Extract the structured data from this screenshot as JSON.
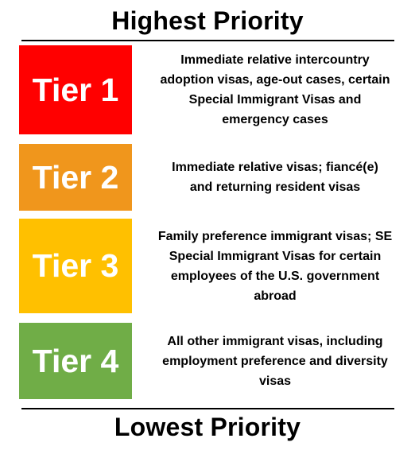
{
  "header": {
    "title": "Highest Priority"
  },
  "footer": {
    "title": "Lowest Priority"
  },
  "tiers": [
    {
      "label": "Tier 1",
      "color": "#ff0000",
      "description": "Immediate relative intercountry adoption visas, age-out cases, certain Special Immigrant Visas and emergency cases"
    },
    {
      "label": "Tier 2",
      "color": "#f0961c",
      "description": "Immediate relative visas; fiancé(e) and returning resident visas"
    },
    {
      "label": "Tier 3",
      "color": "#ffc000",
      "description": "Family preference immigrant visas; SE Special Immigrant Visas for certain employees of the U.S. government abroad"
    },
    {
      "label": "Tier 4",
      "color": "#70ad47",
      "description": "All other immigrant visas, including employment preference and diversity visas"
    }
  ]
}
